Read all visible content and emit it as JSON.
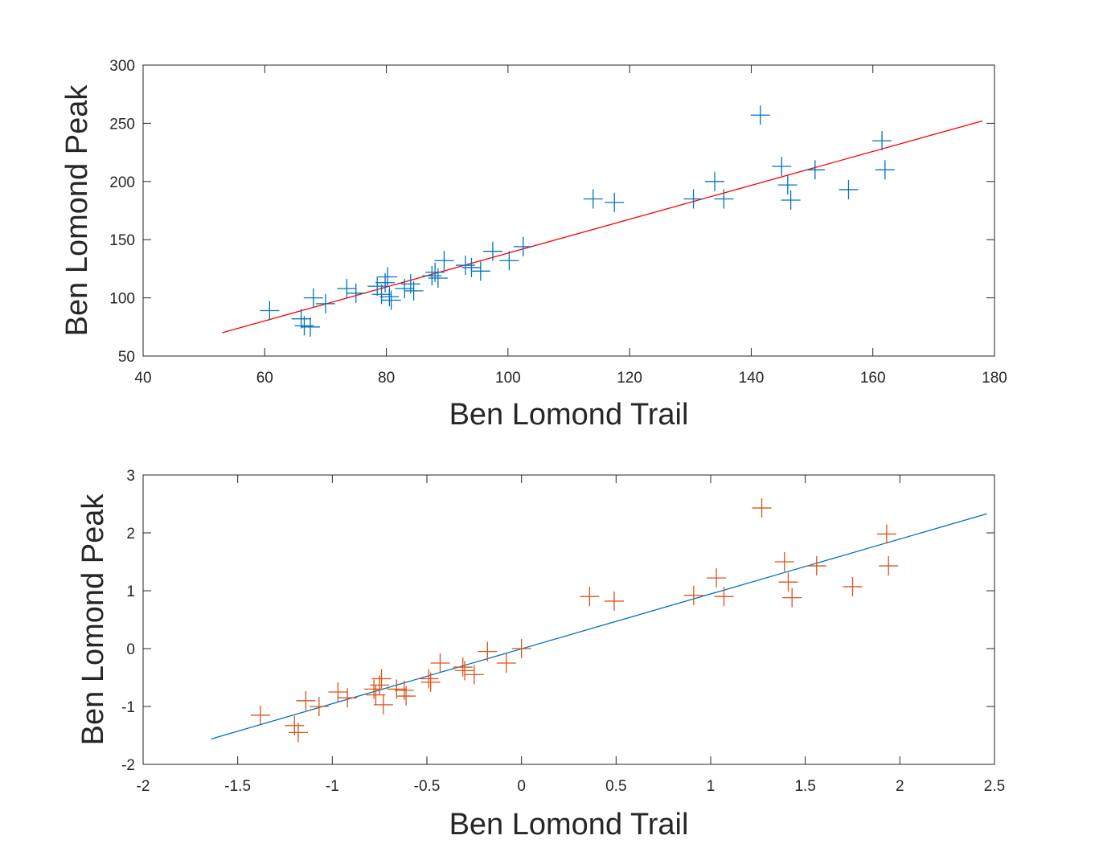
{
  "chart_data": [
    {
      "type": "scatter",
      "title": "",
      "xlabel": "Ben Lomond Trail",
      "ylabel": "Ben Lomond Peak",
      "xlim": [
        40,
        180
      ],
      "ylim": [
        50,
        300
      ],
      "xticks": [
        40,
        60,
        80,
        100,
        120,
        140,
        160,
        180
      ],
      "yticks": [
        50,
        100,
        150,
        200,
        250,
        300
      ],
      "grid": false,
      "legend": "none",
      "marker": "plus",
      "marker_color": "#0072BD",
      "series": [
        {
          "values": [
            [
              60.8,
              89
            ],
            [
              66,
              82
            ],
            [
              66.5,
              76
            ],
            [
              67.5,
              75
            ],
            [
              68,
              100
            ],
            [
              70,
              95
            ],
            [
              73.5,
              108
            ],
            [
              75,
              104
            ],
            [
              78.5,
              110
            ],
            [
              79.2,
              103
            ],
            [
              79.8,
              113
            ],
            [
              80.2,
              118
            ],
            [
              80.5,
              101
            ],
            [
              80.8,
              98
            ],
            [
              83,
              108
            ],
            [
              84,
              112
            ],
            [
              84.5,
              106
            ],
            [
              87.5,
              119
            ],
            [
              88,
              122
            ],
            [
              88.5,
              117
            ],
            [
              89.5,
              132
            ],
            [
              93,
              128
            ],
            [
              94,
              126
            ],
            [
              95.5,
              123
            ],
            [
              97.5,
              140
            ],
            [
              100.2,
              132
            ],
            [
              102.5,
              144
            ],
            [
              114,
              185
            ],
            [
              117.5,
              182
            ],
            [
              130.5,
              185
            ],
            [
              134,
              200
            ],
            [
              135.5,
              185
            ],
            [
              141.5,
              257
            ],
            [
              145,
              213
            ],
            [
              146,
              197
            ],
            [
              146.5,
              184
            ],
            [
              150.5,
              210
            ],
            [
              156,
              193
            ],
            [
              161.5,
              235
            ],
            [
              162,
              210
            ]
          ]
        }
      ],
      "fit_line": {
        "color": "#FF0000",
        "x": [
          53,
          178
        ],
        "y": [
          70,
          252
        ]
      }
    },
    {
      "type": "scatter",
      "title": "",
      "xlabel": "Ben Lomond Trail",
      "ylabel": "Ben Lomond Peak",
      "xlim": [
        -2,
        2.5
      ],
      "ylim": [
        -2,
        3
      ],
      "xticks": [
        -2,
        -1.5,
        -1,
        -0.5,
        0,
        0.5,
        1,
        1.5,
        2,
        2.5
      ],
      "yticks": [
        -2,
        -1,
        0,
        1,
        2,
        3
      ],
      "grid": false,
      "legend": "none",
      "marker": "plus",
      "marker_color": "#D95319",
      "series": [
        {
          "values": [
            [
              -1.38,
              -1.15
            ],
            [
              -1.2,
              -1.33
            ],
            [
              -1.18,
              -1.45
            ],
            [
              -1.14,
              -0.9
            ],
            [
              -1.07,
              -1.0
            ],
            [
              -0.97,
              -0.75
            ],
            [
              -0.92,
              -0.85
            ],
            [
              -0.78,
              -0.7
            ],
            [
              -0.77,
              -0.8
            ],
            [
              -0.75,
              -0.63
            ],
            [
              -0.74,
              -0.52
            ],
            [
              -0.73,
              -0.97
            ],
            [
              -0.66,
              -0.7
            ],
            [
              -0.62,
              -0.72
            ],
            [
              -0.61,
              -0.82
            ],
            [
              -0.49,
              -0.52
            ],
            [
              -0.48,
              -0.58
            ],
            [
              -0.43,
              -0.25
            ],
            [
              -0.31,
              -0.32
            ],
            [
              -0.3,
              -0.38
            ],
            [
              -0.25,
              -0.45
            ],
            [
              -0.18,
              -0.05
            ],
            [
              -0.08,
              -0.25
            ],
            [
              0.0,
              0.0
            ],
            [
              0.36,
              0.9
            ],
            [
              0.49,
              0.82
            ],
            [
              0.91,
              0.92
            ],
            [
              1.03,
              1.22
            ],
            [
              1.07,
              0.9
            ],
            [
              1.27,
              2.43
            ],
            [
              1.39,
              1.5
            ],
            [
              1.41,
              1.15
            ],
            [
              1.43,
              0.88
            ],
            [
              1.56,
              1.43
            ],
            [
              1.75,
              1.07
            ],
            [
              1.93,
              1.98
            ],
            [
              1.94,
              1.43
            ]
          ]
        }
      ],
      "fit_line": {
        "color": "#0072BD",
        "x": [
          -1.64,
          2.46
        ],
        "y": [
          -1.56,
          2.33
        ]
      }
    }
  ]
}
